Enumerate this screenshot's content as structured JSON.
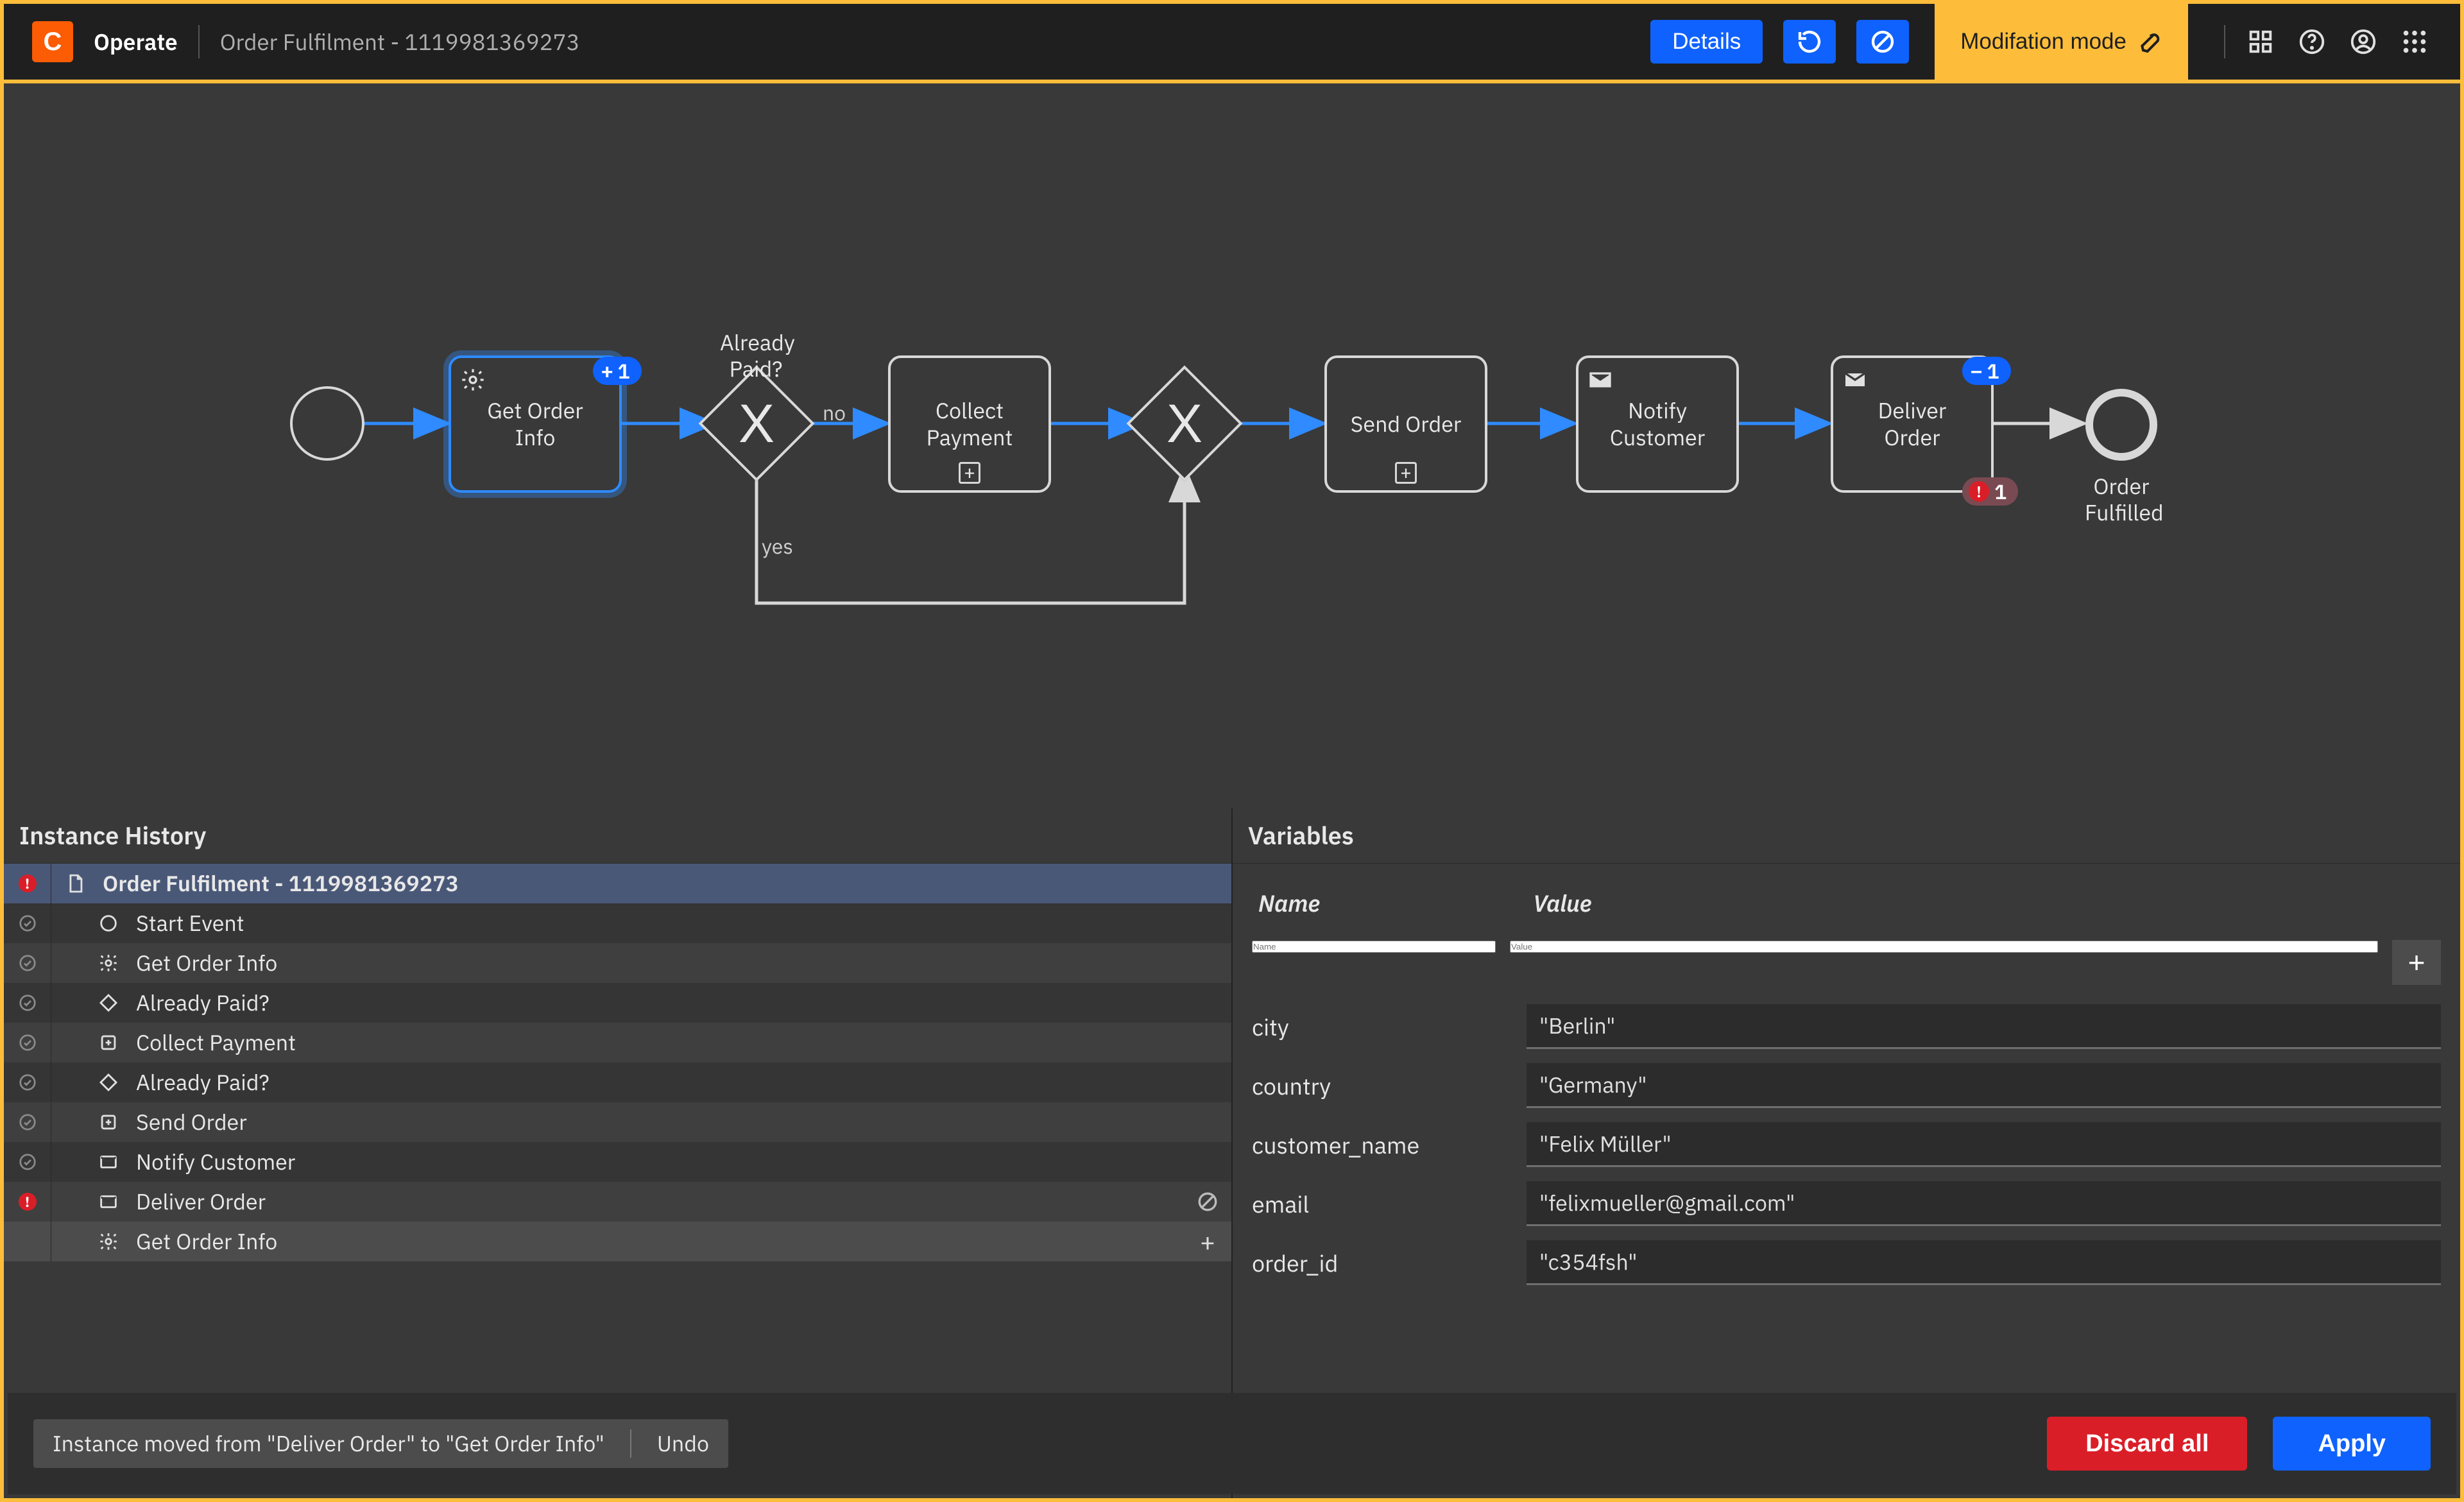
{
  "header": {
    "logo_letter": "C",
    "operate_label": "Operate",
    "breadcrumb": "Order Fulfilment - 1119981369273",
    "details_button": "Details",
    "modification_mode": "Modifation mode"
  },
  "colors": {
    "accent_orange": "#fdbd3b",
    "brand_orange": "#fc5c04",
    "primary_blue": "#0f62fe",
    "token_blue": "#0f62fe",
    "danger_red": "#da1e28",
    "canvas_bg": "#393939",
    "stroke": "#d8d8d8"
  },
  "diagram": {
    "start": {
      "label": ""
    },
    "get_info": {
      "label": "Get Order Info",
      "badge_count": "1",
      "badge_op": "+"
    },
    "gateway1": {
      "label": "Already Paid?",
      "no": "no",
      "yes": "yes"
    },
    "collect_payment": {
      "label": "Collect Payment"
    },
    "send_order": {
      "label": "Send Order"
    },
    "notify_customer": {
      "label": "Notify Customer"
    },
    "deliver_order": {
      "label": "Deliver Order",
      "badge_count": "1",
      "badge_op": "−",
      "incident_count": "1"
    },
    "end": {
      "label": "Order Fulfilled"
    }
  },
  "history": {
    "title": "Instance History",
    "rows": [
      {
        "status": "error",
        "icon": "document",
        "label": "Order Fulfilment - 1119981369273",
        "selected": true,
        "indent": 0
      },
      {
        "status": "ok",
        "icon": "circle",
        "label": "Start Event",
        "indent": 1
      },
      {
        "status": "ok",
        "icon": "gear",
        "label": "Get Order Info",
        "indent": 1
      },
      {
        "status": "ok",
        "icon": "gateway",
        "label": "Already Paid?",
        "indent": 1
      },
      {
        "status": "ok",
        "icon": "subproc",
        "label": "Collect Payment",
        "indent": 1
      },
      {
        "status": "ok",
        "icon": "gateway",
        "label": "Already Paid?",
        "indent": 1
      },
      {
        "status": "ok",
        "icon": "subproc",
        "label": "Send Order",
        "indent": 1
      },
      {
        "status": "ok",
        "icon": "mail",
        "label": "Notify Customer",
        "indent": 1
      },
      {
        "status": "error",
        "icon": "mail",
        "label": "Deliver Order",
        "indent": 1,
        "action": "cancel"
      },
      {
        "status": "none",
        "icon": "gear",
        "label": "Get Order Info",
        "indent": 1,
        "pending": true,
        "action": "add"
      }
    ]
  },
  "variables": {
    "title": "Variables",
    "name_header": "Name",
    "value_header": "Value",
    "name_placeholder": "Name",
    "value_placeholder": "Value",
    "rows": [
      {
        "name": "city",
        "value": "\"Berlin\""
      },
      {
        "name": "country",
        "value": "\"Germany\""
      },
      {
        "name": "customer_name",
        "value": "\"Felix Müller\""
      },
      {
        "name": "email",
        "value": "\"felixmueller@gmail.com\""
      },
      {
        "name": "order_id",
        "value": "\"c354fsh\""
      }
    ]
  },
  "footer": {
    "toast_message": "Instance moved from \"Deliver Order\" to \"Get Order Info\"",
    "undo": "Undo",
    "discard_all": "Discard all",
    "apply": "Apply"
  }
}
